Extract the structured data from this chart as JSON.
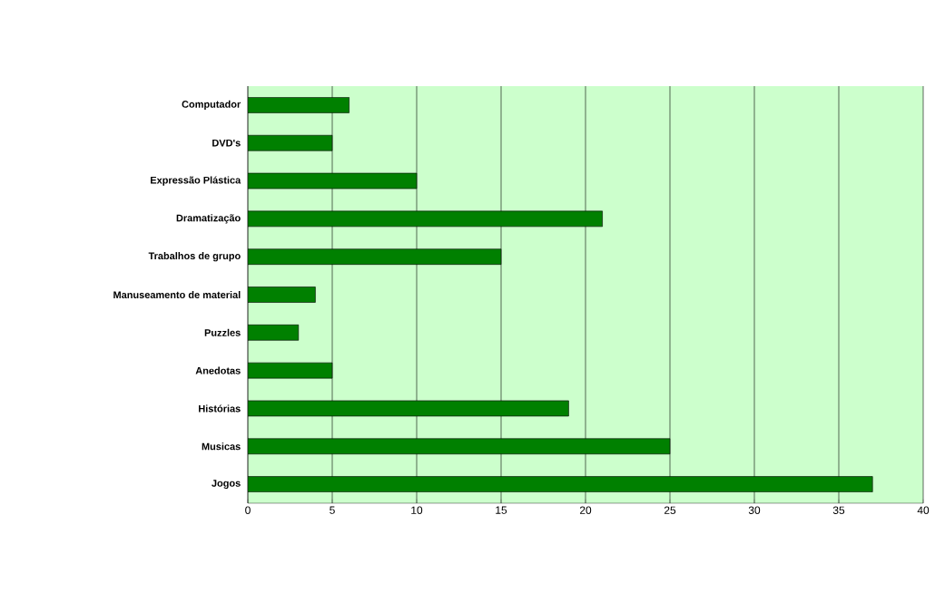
{
  "chart_data": {
    "type": "bar",
    "orientation": "horizontal",
    "categories": [
      "Computador",
      "DVD's",
      "Expressão Plástica",
      "Dramatização",
      "Trabalhos de grupo",
      "Manuseamento de material",
      "Puzzles",
      "Anedotas",
      "Histórias",
      "Musicas",
      "Jogos"
    ],
    "values": [
      6,
      5,
      10,
      21,
      15,
      4,
      3,
      5,
      19,
      25,
      37
    ],
    "color": "#008000",
    "xlim": [
      0,
      40
    ],
    "xticks": [
      0,
      5,
      10,
      15,
      20,
      25,
      30,
      35,
      40
    ],
    "grid": "x"
  }
}
